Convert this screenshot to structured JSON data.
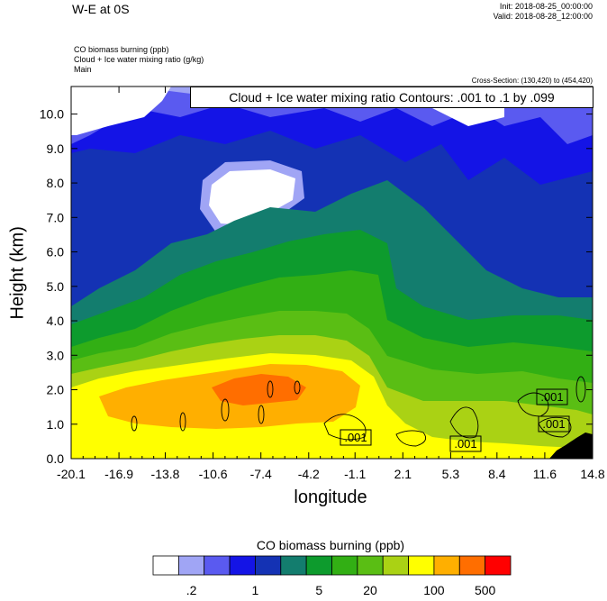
{
  "header": {
    "title": "W-E at 0S",
    "init": "Init: 2018-08-25_00:00:00",
    "valid": "Valid: 2018-08-28_12:00:00",
    "field1": "CO biomass burning   (ppb)",
    "field2": "Cloud + Ice water mixing ratio   (g/kg)",
    "field3": "Main",
    "cross_section": "Cross-Section: (130,420) to (454,420)",
    "contour_info": "Cloud + Ice water mixing ratio Contours: .001 to .1 by .099"
  },
  "chart_data": {
    "type": "heatmap",
    "xlabel": "longitude",
    "ylabel": "Height (km)",
    "xlim": [
      -20.1,
      14.8
    ],
    "ylim": [
      0,
      10.8
    ],
    "x_ticks": [
      "-20.1",
      "-16.9",
      "-13.8",
      "-10.6",
      "-7.4",
      "-4.2",
      "-1.1",
      "2.1",
      "5.3",
      "8.4",
      "11.6",
      "14.8"
    ],
    "y_ticks": [
      "0.0",
      "1.0",
      "2.0",
      "3.0",
      "4.0",
      "5.0",
      "6.0",
      "7.0",
      "8.0",
      "9.0",
      "10.0"
    ],
    "contour_labels": [
      ".001",
      ".001",
      ".001",
      ".001"
    ],
    "colorbar": {
      "title": "CO biomass burning  (ppb)",
      "colors": [
        "#ffffff",
        "#a0a5f5",
        "#5a5af0",
        "#1414e6",
        "#1432b4",
        "#137d6e",
        "#0d9b2d",
        "#32af14",
        "#5abe14",
        "#aad214",
        "#ffff00",
        "#ffaf00",
        "#ff6e00",
        "#ff0000"
      ],
      "labels": [
        ".2",
        "1",
        "5",
        "20",
        "100",
        "500"
      ]
    }
  }
}
